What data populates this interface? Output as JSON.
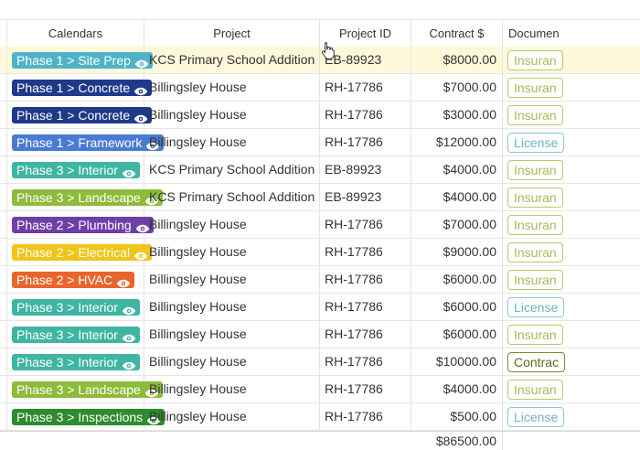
{
  "columns": {
    "calendars": "Calendars",
    "project": "Project",
    "project_id": "Project ID",
    "contract": "Contract $",
    "documents": "Documen"
  },
  "rows": [
    {
      "calendar": "Phase 1 > Site Prep",
      "color": "#4fb3c8",
      "project": "KCS Primary School Addition",
      "project_id": "EB-89923",
      "contract": "$8000.00",
      "doc": "Insuran",
      "doc_type": "ins",
      "selected": true
    },
    {
      "calendar": "Phase 1 > Concrete",
      "color": "#1f3a8a",
      "project": "Billingsley House",
      "project_id": "RH-17786",
      "contract": "$7000.00",
      "doc": "Insuran",
      "doc_type": "ins"
    },
    {
      "calendar": "Phase 1 > Concrete",
      "color": "#1f3a8a",
      "project": "Billingsley House",
      "project_id": "RH-17786",
      "contract": "$3000.00",
      "doc": "Insuran",
      "doc_type": "ins"
    },
    {
      "calendar": "Phase 1 > Framework",
      "color": "#4a7bd4",
      "project": "Billingsley House",
      "project_id": "RH-17786",
      "contract": "$12000.00",
      "doc": "License",
      "doc_type": "lic"
    },
    {
      "calendar": "Phase 3 > Interior",
      "color": "#3fb5a3",
      "project": "KCS Primary School Addition",
      "project_id": "EB-89923",
      "contract": "$4000.00",
      "doc": "Insuran",
      "doc_type": "ins"
    },
    {
      "calendar": "Phase 3 > Landscape",
      "color": "#8dbb3a",
      "project": "KCS Primary School Addition",
      "project_id": "EB-89923",
      "contract": "$4000.00",
      "doc": "Insuran",
      "doc_type": "ins"
    },
    {
      "calendar": "Phase 2 > Plumbing",
      "color": "#6f3fa8",
      "project": "Billingsley House",
      "project_id": "RH-17786",
      "contract": "$7000.00",
      "doc": "Insuran",
      "doc_type": "ins"
    },
    {
      "calendar": "Phase 2 > Electrical",
      "color": "#f0c419",
      "project": "Billingsley House",
      "project_id": "RH-17786",
      "contract": "$9000.00",
      "doc": "Insuran",
      "doc_type": "ins"
    },
    {
      "calendar": "Phase 2 > HVAC",
      "color": "#e8652c",
      "project": "Billingsley House",
      "project_id": "RH-17786",
      "contract": "$6000.00",
      "doc": "Insuran",
      "doc_type": "ins"
    },
    {
      "calendar": "Phase 3 > Interior",
      "color": "#3fb5a3",
      "project": "Billingsley House",
      "project_id": "RH-17786",
      "contract": "$6000.00",
      "doc": "License",
      "doc_type": "lic"
    },
    {
      "calendar": "Phase 3 > Interior",
      "color": "#3fb5a3",
      "project": "Billingsley House",
      "project_id": "RH-17786",
      "contract": "$6000.00",
      "doc": "Insuran",
      "doc_type": "ins"
    },
    {
      "calendar": "Phase 3 > Interior",
      "color": "#3fb5a3",
      "project": "Billingsley House",
      "project_id": "RH-17786",
      "contract": "$10000.00",
      "doc": "Contrac",
      "doc_type": "con"
    },
    {
      "calendar": "Phase 3 > Landscape",
      "color": "#8dbb3a",
      "project": "Billingsley House",
      "project_id": "RH-17786",
      "contract": "$4000.00",
      "doc": "Insuran",
      "doc_type": "ins"
    },
    {
      "calendar": "Phase 3 > Inspections",
      "color": "#2e8b2e",
      "project": "Billingsley House",
      "project_id": "RH-17786",
      "contract": "$500.00",
      "doc": "License",
      "doc_type": "lic"
    }
  ],
  "totals": {
    "contract": "$86500.00"
  },
  "icons": {
    "tag_action": "eye-icon",
    "cursor": "hand-cursor-icon"
  }
}
